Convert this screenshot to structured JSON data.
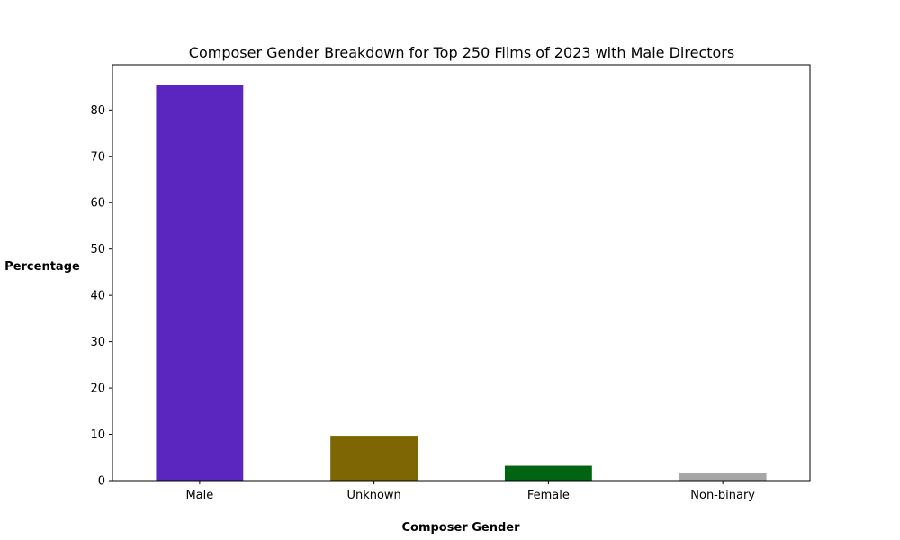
{
  "chart_data": {
    "type": "bar",
    "title": "Composer Gender Breakdown for Top 250 Films of 2023 with Male Directors",
    "xlabel": "Composer Gender",
    "ylabel": "Percentage",
    "categories": [
      "Male",
      "Unknown",
      "Female",
      "Non-binary"
    ],
    "values": [
      85.5,
      9.7,
      3.2,
      1.6
    ],
    "colors": [
      "#5b25bf",
      "#7d6603",
      "#006412",
      "#a7a5a7"
    ],
    "ylim": [
      0,
      89.775
    ],
    "yticks": [
      0,
      10,
      20,
      30,
      40,
      50,
      60,
      70,
      80
    ],
    "grid": false,
    "legend": "none"
  }
}
